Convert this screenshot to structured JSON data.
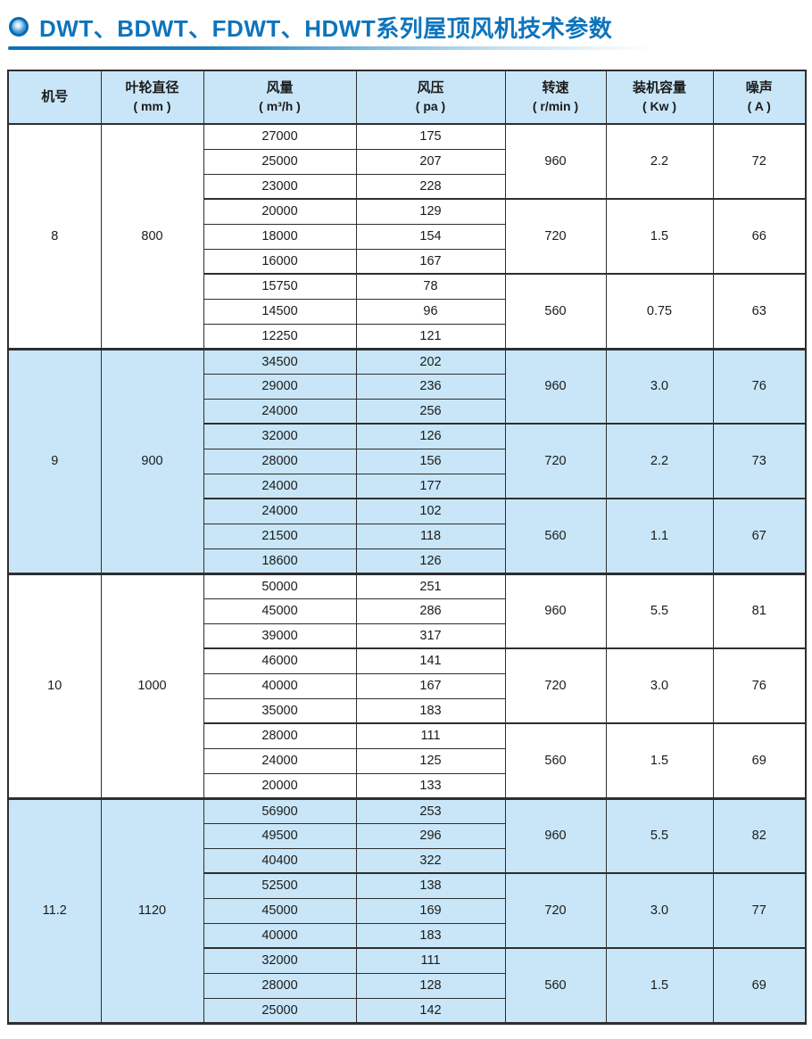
{
  "page": {
    "title": "DWT、BDWT、FDWT、HDWT系列屋顶风机技术参数"
  },
  "colors": {
    "title_blue": "#0d74bc",
    "row_highlight_blue": "#c8e6f7",
    "table_border": "#2e2e2e"
  },
  "table": {
    "headers": [
      {
        "label": "机号",
        "sub": ""
      },
      {
        "label": "叶轮直径",
        "sub": "( mm )"
      },
      {
        "label": "风量",
        "sub": "( m³/h )"
      },
      {
        "label": "风压",
        "sub": "( pa )"
      },
      {
        "label": "转速",
        "sub": "( r/min )"
      },
      {
        "label": "装机容量",
        "sub": "( Kw )"
      },
      {
        "label": "噪声",
        "sub": "( A )"
      }
    ],
    "blocks": [
      {
        "model": "8",
        "diameter": "800",
        "highlighted": false,
        "groups": [
          {
            "speed": "960",
            "power": "2.2",
            "noise": "72",
            "rows": [
              [
                "27000",
                "175"
              ],
              [
                "25000",
                "207"
              ],
              [
                "23000",
                "228"
              ]
            ]
          },
          {
            "speed": "720",
            "power": "1.5",
            "noise": "66",
            "rows": [
              [
                "20000",
                "129"
              ],
              [
                "18000",
                "154"
              ],
              [
                "16000",
                "167"
              ]
            ]
          },
          {
            "speed": "560",
            "power": "0.75",
            "noise": "63",
            "rows": [
              [
                "15750",
                "78"
              ],
              [
                "14500",
                "96"
              ],
              [
                "12250",
                "121"
              ]
            ]
          }
        ]
      },
      {
        "model": "9",
        "diameter": "900",
        "highlighted": true,
        "groups": [
          {
            "speed": "960",
            "power": "3.0",
            "noise": "76",
            "rows": [
              [
                "34500",
                "202"
              ],
              [
                "29000",
                "236"
              ],
              [
                "24000",
                "256"
              ]
            ]
          },
          {
            "speed": "720",
            "power": "2.2",
            "noise": "73",
            "rows": [
              [
                "32000",
                "126"
              ],
              [
                "28000",
                "156"
              ],
              [
                "24000",
                "177"
              ]
            ]
          },
          {
            "speed": "560",
            "power": "1.1",
            "noise": "67",
            "rows": [
              [
                "24000",
                "102"
              ],
              [
                "21500",
                "118"
              ],
              [
                "18600",
                "126"
              ]
            ]
          }
        ]
      },
      {
        "model": "10",
        "diameter": "1000",
        "highlighted": false,
        "groups": [
          {
            "speed": "960",
            "power": "5.5",
            "noise": "81",
            "rows": [
              [
                "50000",
                "251"
              ],
              [
                "45000",
                "286"
              ],
              [
                "39000",
                "317"
              ]
            ]
          },
          {
            "speed": "720",
            "power": "3.0",
            "noise": "76",
            "rows": [
              [
                "46000",
                "141"
              ],
              [
                "40000",
                "167"
              ],
              [
                "35000",
                "183"
              ]
            ]
          },
          {
            "speed": "560",
            "power": "1.5",
            "noise": "69",
            "rows": [
              [
                "28000",
                "111"
              ],
              [
                "24000",
                "125"
              ],
              [
                "20000",
                "133"
              ]
            ]
          }
        ]
      },
      {
        "model": "11.2",
        "diameter": "1120",
        "highlighted": true,
        "groups": [
          {
            "speed": "960",
            "power": "5.5",
            "noise": "82",
            "rows": [
              [
                "56900",
                "253"
              ],
              [
                "49500",
                "296"
              ],
              [
                "40400",
                "322"
              ]
            ]
          },
          {
            "speed": "720",
            "power": "3.0",
            "noise": "77",
            "rows": [
              [
                "52500",
                "138"
              ],
              [
                "45000",
                "169"
              ],
              [
                "40000",
                "183"
              ]
            ]
          },
          {
            "speed": "560",
            "power": "1.5",
            "noise": "69",
            "rows": [
              [
                "32000",
                "111"
              ],
              [
                "28000",
                "128"
              ],
              [
                "25000",
                "142"
              ]
            ]
          }
        ]
      }
    ]
  }
}
